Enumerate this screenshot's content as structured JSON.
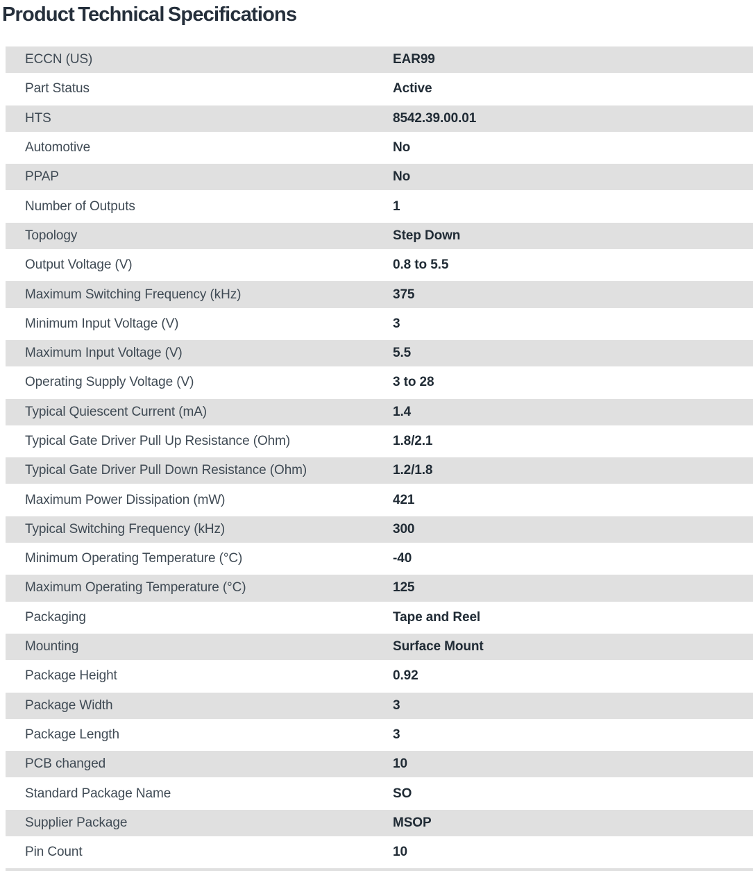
{
  "page": {
    "title": "Product Technical Specifications"
  },
  "colors": {
    "alt_row_bg": "#e0e0e0",
    "label_text": "#3f4a54",
    "value_text": "#202b35",
    "title_text": "#252f3b"
  },
  "table": {
    "rows": [
      {
        "label": "ECCN (US)",
        "value": "EAR99"
      },
      {
        "label": "Part Status",
        "value": "Active"
      },
      {
        "label": "HTS",
        "value": "8542.39.00.01"
      },
      {
        "label": "Automotive",
        "value": "No"
      },
      {
        "label": "PPAP",
        "value": "No"
      },
      {
        "label": "Number of Outputs",
        "value": "1"
      },
      {
        "label": "Topology",
        "value": "Step Down"
      },
      {
        "label": "Output Voltage (V)",
        "value": "0.8 to 5.5"
      },
      {
        "label": "Maximum Switching Frequency (kHz)",
        "value": "375"
      },
      {
        "label": "Minimum Input Voltage (V)",
        "value": "3"
      },
      {
        "label": "Maximum Input Voltage (V)",
        "value": "5.5"
      },
      {
        "label": "Operating Supply Voltage (V)",
        "value": "3 to 28"
      },
      {
        "label": "Typical Quiescent Current (mA)",
        "value": "1.4"
      },
      {
        "label": "Typical Gate Driver Pull Up Resistance (Ohm)",
        "value": "1.8/2.1"
      },
      {
        "label": "Typical Gate Driver Pull Down Resistance (Ohm)",
        "value": "1.2/1.8"
      },
      {
        "label": "Maximum Power Dissipation (mW)",
        "value": "421"
      },
      {
        "label": "Typical Switching Frequency (kHz)",
        "value": "300"
      },
      {
        "label": "Minimum Operating Temperature (°C)",
        "value": "-40"
      },
      {
        "label": "Maximum Operating Temperature (°C)",
        "value": "125"
      },
      {
        "label": "Packaging",
        "value": "Tape and Reel"
      },
      {
        "label": "Mounting",
        "value": "Surface Mount"
      },
      {
        "label": "Package Height",
        "value": "0.92"
      },
      {
        "label": "Package Width",
        "value": "3"
      },
      {
        "label": "Package Length",
        "value": "3"
      },
      {
        "label": "PCB changed",
        "value": "10"
      },
      {
        "label": "Standard Package Name",
        "value": "SO"
      },
      {
        "label": "Supplier Package",
        "value": "MSOP"
      },
      {
        "label": "Pin Count",
        "value": "10"
      }
    ]
  }
}
